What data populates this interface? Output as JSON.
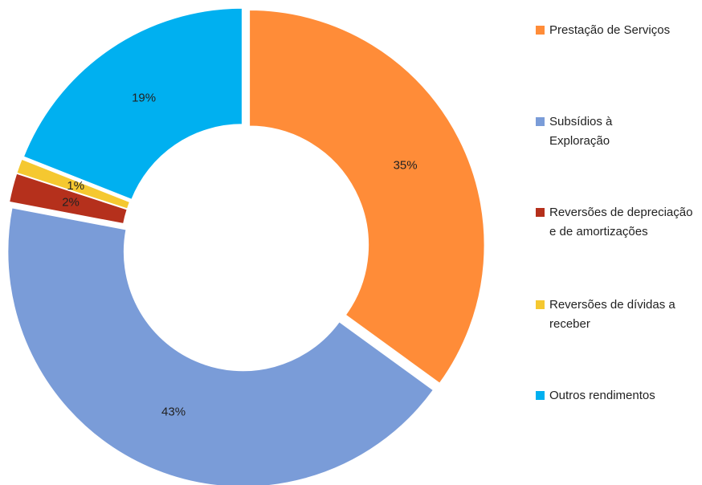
{
  "chart_data": {
    "type": "donut",
    "categories": [
      "Prestação de Serviços",
      "Subsídios à Exploração",
      "Reversões de depreciação e de amortizações",
      "Reversões de dívidas a receber",
      "Outros rendimentos"
    ],
    "values": [
      35,
      43,
      2,
      1,
      19
    ],
    "colors": [
      "#ff8c38",
      "#7a9cd8",
      "#b5301c",
      "#f5c830",
      "#00b0f0"
    ],
    "legend": "right"
  }
}
